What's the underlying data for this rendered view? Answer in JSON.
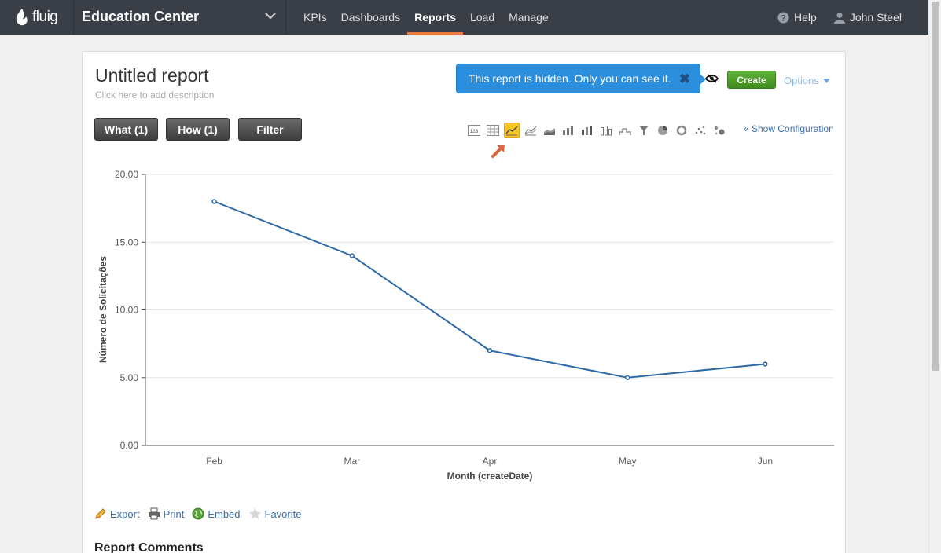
{
  "nav": {
    "logo_text": "fluig",
    "app_title": "Education Center",
    "items": [
      {
        "label": "KPIs",
        "active": false
      },
      {
        "label": "Dashboards",
        "active": false
      },
      {
        "label": "Reports",
        "active": true
      },
      {
        "label": "Load",
        "active": false
      },
      {
        "label": "Manage",
        "active": false
      }
    ],
    "help_label": "Help",
    "user_name": "John Steel"
  },
  "report": {
    "title": "Untitled report",
    "description_placeholder": "Click here to add description",
    "hidden_notice": "This report is hidden. Only you can see it.",
    "create_label": "Create",
    "options_label": "Options",
    "what_label": "What (1)",
    "how_label": "How (1)",
    "filter_label": "Filter",
    "show_config_label": "« Show Configuration",
    "chart_types": [
      "number-icon",
      "table-icon",
      "line-chart-icon",
      "line-multi-icon",
      "area-chart-icon",
      "bar-chart-icon",
      "stacked-bar-icon",
      "bar-outline-icon",
      "step-chart-icon",
      "funnel-icon",
      "pie-chart-icon",
      "donut-chart-icon",
      "scatter-icon",
      "bubble-icon"
    ],
    "active_chart_type": 2
  },
  "chart_data": {
    "type": "line",
    "categories": [
      "Feb",
      "Mar",
      "Apr",
      "May",
      "Jun"
    ],
    "values": [
      18,
      14,
      7,
      5,
      6
    ],
    "xlabel": "Month (createDate)",
    "ylabel": "Número de Solicitações",
    "ylim": [
      0,
      20
    ],
    "yticks": [
      "0.00",
      "5.00",
      "10.00",
      "15.00",
      "20.00"
    ],
    "grid": true,
    "line_color": "#2f6aa8"
  },
  "actions": {
    "export": "Export",
    "print": "Print",
    "embed": "Embed",
    "favorite": "Favorite"
  },
  "comments_title": "Report Comments"
}
